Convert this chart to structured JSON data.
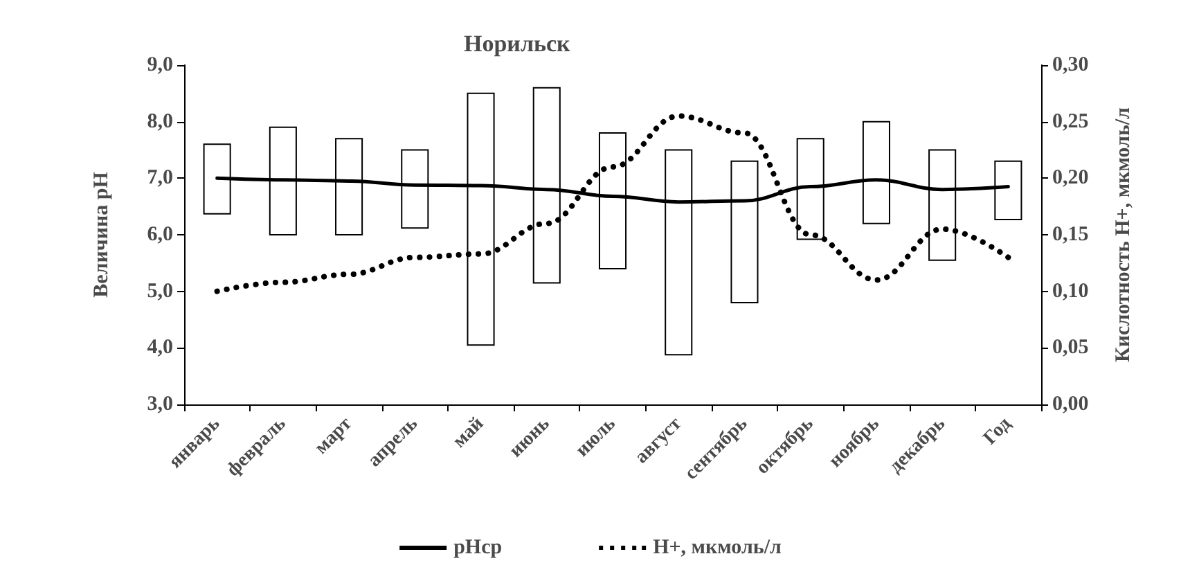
{
  "chart_data": {
    "type": "bar",
    "title": "Норильск",
    "ylabel": "Величина pH",
    "y2label": "Кислотность Н+, мкмоль/л",
    "categories": [
      "январь",
      "февраль",
      "март",
      "апрель",
      "май",
      "июнь",
      "июль",
      "август",
      "сентябрь",
      "октябрь",
      "ноябрь",
      "декабрь",
      "Год"
    ],
    "series": [
      {
        "color": "#ffffff",
        "base": [
          6.37,
          6.0,
          6.0,
          6.12,
          4.05,
          5.15,
          5.4,
          3.88,
          4.8,
          5.92,
          6.2,
          5.55,
          6.27
        ],
        "values": [
          1.23,
          1.9,
          1.7,
          1.38,
          4.45,
          3.45,
          2.4,
          3.62,
          2.5,
          1.78,
          1.8,
          1.95,
          1.03
        ]
      },
      {
        "type": "line",
        "name": "pHср",
        "color": "#000000",
        "line_style": "solid",
        "values": [
          7.0,
          6.97,
          6.95,
          6.88,
          6.87,
          6.8,
          6.68,
          6.58,
          6.6,
          6.85,
          6.97,
          6.8,
          6.85
        ]
      },
      {
        "type": "line",
        "name": "Н+, мкмоль/л",
        "color": "#000000",
        "line_style": "dotted",
        "axis": "y2",
        "values": [
          0.1,
          0.108,
          0.115,
          0.13,
          0.133,
          0.16,
          0.21,
          0.255,
          0.24,
          0.15,
          0.11,
          0.155,
          0.13
        ]
      }
    ],
    "ylim": [
      3,
      9
    ],
    "yticks": [
      {
        "value": 3,
        "label": "3,0"
      },
      {
        "value": 4,
        "label": "4,0"
      },
      {
        "value": 5,
        "label": "5,0"
      },
      {
        "value": 6,
        "label": "6,0"
      },
      {
        "value": 7,
        "label": "7,0"
      },
      {
        "value": 8,
        "label": "8,0"
      },
      {
        "value": 9,
        "label": "9,0"
      }
    ],
    "y2lim": [
      0,
      0.3
    ],
    "y2ticks": [
      {
        "value": 0,
        "label": "0,00"
      },
      {
        "value": 0.05,
        "label": "0,05"
      },
      {
        "value": 0.1,
        "label": "0,10"
      },
      {
        "value": 0.15,
        "label": "0,15"
      },
      {
        "value": 0.2,
        "label": "0,20"
      },
      {
        "value": 0.25,
        "label": "0,25"
      },
      {
        "value": 0.3,
        "label": "0,30"
      }
    ],
    "grid": false,
    "legend": "bottom",
    "marker": "none"
  }
}
